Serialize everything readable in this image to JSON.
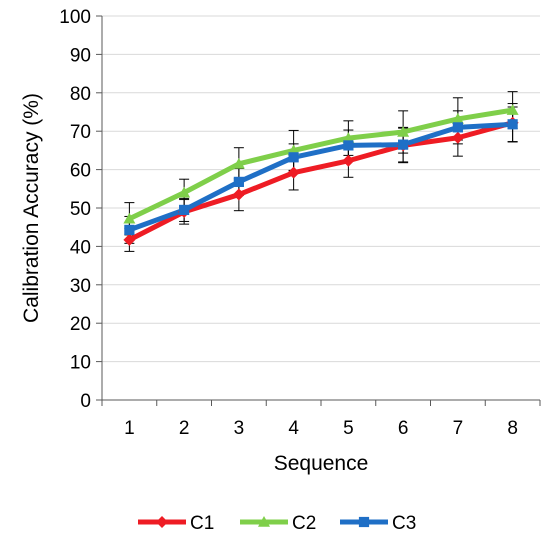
{
  "chart_data": {
    "type": "line",
    "title": "",
    "xlabel": "Sequence",
    "ylabel": "Calibration Accuracy (%)",
    "x": [
      1,
      2,
      3,
      4,
      5,
      6,
      7,
      8
    ],
    "x_tick_labels": [
      "1",
      "2",
      "3",
      "4",
      "5",
      "6",
      "7",
      "8"
    ],
    "ylim": [
      0,
      100
    ],
    "y_ticks": [
      0,
      10,
      20,
      30,
      40,
      50,
      60,
      70,
      80,
      90,
      100
    ],
    "y_tick_labels": [
      "0",
      "10",
      "20",
      "30",
      "40",
      "50",
      "60",
      "70",
      "80",
      "90",
      "100"
    ],
    "grid": "horizontal",
    "legend_position": "bottom",
    "series": [
      {
        "name": "C1",
        "color": "#ee1c24",
        "marker": "diamond",
        "values": [
          41.7,
          49.0,
          53.5,
          59.2,
          62.3,
          66.3,
          68.3,
          72.2
        ],
        "error": [
          3.0,
          3.2,
          4.2,
          4.5,
          4.3,
          4.5,
          4.8,
          5.0
        ]
      },
      {
        "name": "C2",
        "color": "#7fcf4a",
        "marker": "triangle",
        "values": [
          47.2,
          54.0,
          61.5,
          65.0,
          68.2,
          69.8,
          73.2,
          75.5
        ],
        "error": [
          4.2,
          3.5,
          4.2,
          5.2,
          4.5,
          5.5,
          5.5,
          4.8
        ]
      },
      {
        "name": "C3",
        "color": "#1f6fc6",
        "marker": "square",
        "values": [
          44.3,
          49.5,
          56.8,
          63.2,
          66.3,
          66.5,
          71.0,
          71.8
        ],
        "error": [
          3.5,
          3.0,
          3.5,
          3.5,
          4.0,
          4.5,
          4.3,
          4.5
        ]
      }
    ]
  }
}
